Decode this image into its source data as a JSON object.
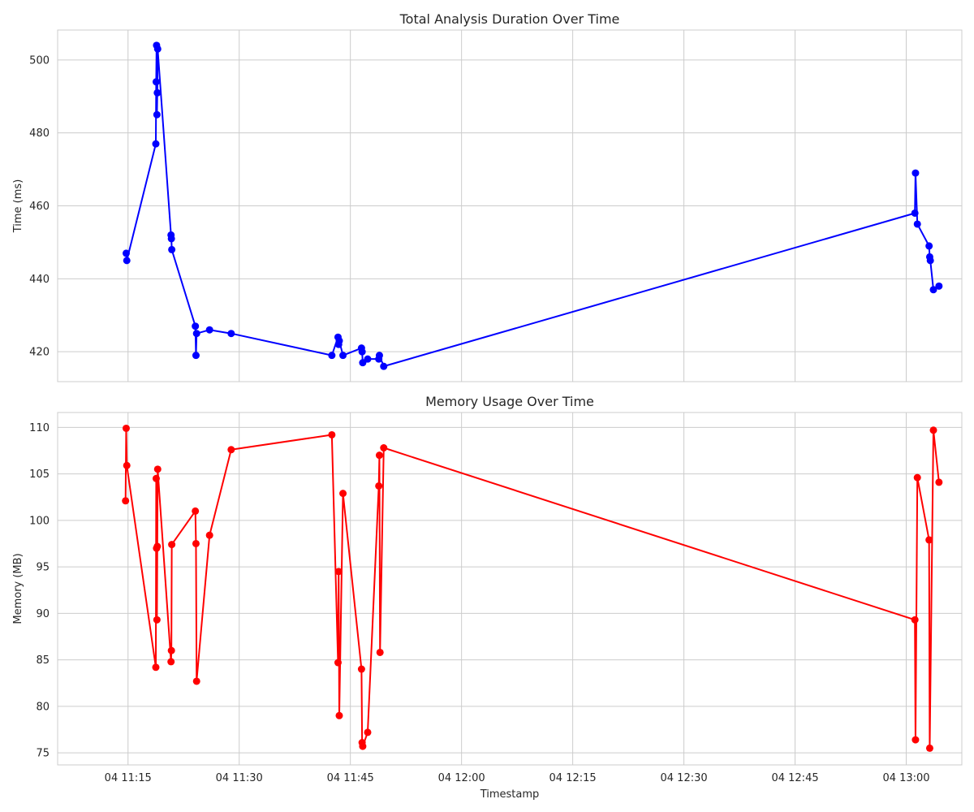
{
  "chart_data": [
    {
      "type": "line",
      "title": "Total Analysis Duration Over Time",
      "xlabel": "",
      "ylabel": "Time (ms)",
      "color": "#0000ff",
      "marker": "circle",
      "grid": true,
      "xlim": [
        "2024-01-04T11:05:30",
        "2024-01-04T13:07:30"
      ],
      "ylim": [
        411.8,
        508.2
      ],
      "xticks": [
        "04 11:15",
        "04 11:30",
        "04 11:45",
        "04 12:00",
        "04 12:15",
        "04 12:30",
        "04 12:45",
        "04 13:00"
      ],
      "xtick_values": [
        "2024-01-04T11:15:00",
        "2024-01-04T11:30:00",
        "2024-01-04T11:45:00",
        "2024-01-04T12:00:00",
        "2024-01-04T12:15:00",
        "2024-01-04T12:30:00",
        "2024-01-04T12:45:00",
        "2024-01-04T13:00:00"
      ],
      "yticks": [
        420,
        440,
        460,
        480,
        500
      ],
      "x": [
        "2024-01-04T11:14:45",
        "2024-01-04T11:14:50",
        "2024-01-04T11:18:45",
        "2024-01-04T11:18:48",
        "2024-01-04T11:18:51",
        "2024-01-04T11:18:54",
        "2024-01-04T11:18:57",
        "2024-01-04T11:19:00",
        "2024-01-04T11:20:48",
        "2024-01-04T11:20:51",
        "2024-01-04T11:20:54",
        "2024-01-04T11:24:05",
        "2024-01-04T11:24:10",
        "2024-01-04T11:24:15",
        "2024-01-04T11:26:00",
        "2024-01-04T11:28:55",
        "2024-01-04T11:42:30",
        "2024-01-04T11:43:20",
        "2024-01-04T11:43:25",
        "2024-01-04T11:43:30",
        "2024-01-04T11:44:00",
        "2024-01-04T11:46:30",
        "2024-01-04T11:46:35",
        "2024-01-04T11:46:40",
        "2024-01-04T11:47:20",
        "2024-01-04T11:48:50",
        "2024-01-04T11:48:55",
        "2024-01-04T11:49:30",
        "2024-01-04T13:01:10",
        "2024-01-04T13:01:15",
        "2024-01-04T13:01:30",
        "2024-01-04T13:03:05",
        "2024-01-04T13:03:10",
        "2024-01-04T13:03:15",
        "2024-01-04T13:03:40",
        "2024-01-04T13:04:25"
      ],
      "values": [
        447,
        445,
        477,
        494,
        504,
        485,
        491,
        503,
        452,
        451,
        448,
        427,
        419,
        425,
        426,
        425,
        419,
        424,
        422,
        423,
        419,
        421,
        420,
        417,
        418,
        418,
        419,
        416,
        458,
        469,
        455,
        449,
        446,
        445,
        437,
        438
      ]
    },
    {
      "type": "line",
      "title": "Memory Usage Over Time",
      "xlabel": "Timestamp",
      "ylabel": "Memory (MB)",
      "color": "#ff0000",
      "marker": "circle",
      "grid": true,
      "xlim": [
        "2024-01-04T11:05:30",
        "2024-01-04T13:07:30"
      ],
      "ylim": [
        73.7,
        111.6
      ],
      "xticks": [
        "04 11:15",
        "04 11:30",
        "04 11:45",
        "04 12:00",
        "04 12:15",
        "04 12:30",
        "04 12:45",
        "04 13:00"
      ],
      "xtick_values": [
        "2024-01-04T11:15:00",
        "2024-01-04T11:30:00",
        "2024-01-04T11:45:00",
        "2024-01-04T12:00:00",
        "2024-01-04T12:15:00",
        "2024-01-04T12:30:00",
        "2024-01-04T12:45:00",
        "2024-01-04T13:00:00"
      ],
      "yticks": [
        75,
        80,
        85,
        90,
        95,
        100,
        105,
        110
      ],
      "x": [
        "2024-01-04T11:14:40",
        "2024-01-04T11:14:45",
        "2024-01-04T11:14:50",
        "2024-01-04T11:18:45",
        "2024-01-04T11:18:48",
        "2024-01-04T11:18:51",
        "2024-01-04T11:18:54",
        "2024-01-04T11:18:57",
        "2024-01-04T11:19:00",
        "2024-01-04T11:20:48",
        "2024-01-04T11:20:51",
        "2024-01-04T11:20:54",
        "2024-01-04T11:24:05",
        "2024-01-04T11:24:10",
        "2024-01-04T11:24:15",
        "2024-01-04T11:26:00",
        "2024-01-04T11:28:55",
        "2024-01-04T11:42:30",
        "2024-01-04T11:43:20",
        "2024-01-04T11:43:25",
        "2024-01-04T11:43:30",
        "2024-01-04T11:44:00",
        "2024-01-04T11:46:30",
        "2024-01-04T11:46:35",
        "2024-01-04T11:46:40",
        "2024-01-04T11:47:20",
        "2024-01-04T11:48:50",
        "2024-01-04T11:48:55",
        "2024-01-04T11:49:00",
        "2024-01-04T11:49:30",
        "2024-01-04T13:01:10",
        "2024-01-04T13:01:15",
        "2024-01-04T13:01:30",
        "2024-01-04T13:03:05",
        "2024-01-04T13:03:10",
        "2024-01-04T13:03:40",
        "2024-01-04T13:04:25"
      ],
      "values": [
        102.1,
        109.9,
        105.9,
        84.2,
        104.5,
        97.0,
        89.3,
        97.2,
        105.5,
        84.8,
        86.0,
        97.4,
        101.0,
        97.5,
        82.7,
        98.4,
        107.6,
        109.2,
        84.7,
        94.5,
        79.0,
        102.9,
        84.0,
        76.1,
        75.7,
        77.2,
        103.7,
        107.0,
        85.8,
        107.8,
        89.3,
        76.4,
        104.6,
        97.9,
        75.5,
        109.7,
        104.1
      ]
    }
  ]
}
